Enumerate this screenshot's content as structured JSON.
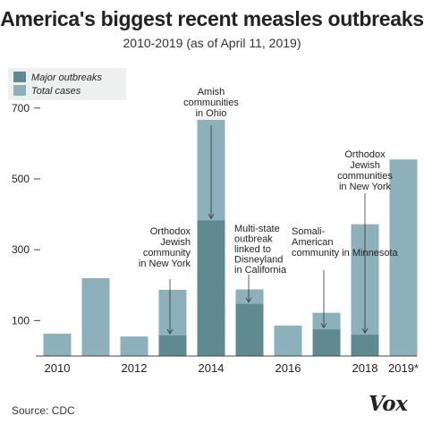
{
  "title": "America's biggest recent measles outbreaks",
  "subtitle": "2010-2019 (as of April 11, 2019)",
  "source": "Source: CDC",
  "logo": "Vox",
  "legend": {
    "major_label": "Major outbreaks",
    "total_label": "Total cases"
  },
  "colors": {
    "total": "#8db1ba",
    "major": "#5f8a90",
    "arrow": "#333333",
    "text": "#222222",
    "axis": "#444444"
  },
  "chart_data": {
    "type": "bar",
    "title": "America's biggest recent measles outbreaks",
    "subtitle": "2010-2019 (as of April 11, 2019)",
    "xlabel": "",
    "ylabel": "",
    "ylim": [
      0,
      750
    ],
    "yticks": [
      100,
      300,
      500,
      700
    ],
    "grid": false,
    "legend_position": "top-left",
    "categories": [
      "2010",
      "2011",
      "2012",
      "2013",
      "2014",
      "2015",
      "2016",
      "2017",
      "2018",
      "2019*"
    ],
    "xtick_labels": [
      "2010",
      "",
      "2012",
      "",
      "2014",
      "",
      "2016",
      "",
      "2018",
      "2019*"
    ],
    "series": [
      {
        "name": "Total cases",
        "values": [
          63,
          220,
          55,
          187,
          667,
          188,
          86,
          122,
          372,
          555
        ]
      },
      {
        "name": "Major outbreaks",
        "values": [
          null,
          null,
          null,
          58,
          383,
          147,
          null,
          75,
          60,
          null
        ]
      }
    ],
    "annotations": [
      {
        "category": "2013",
        "lines": [
          "Orthodox",
          "Jewish",
          "community",
          "in New York"
        ]
      },
      {
        "category": "2014",
        "lines": [
          "Amish",
          "communities",
          "in Ohio"
        ]
      },
      {
        "category": "2015",
        "lines": [
          "Multi-state",
          "outbreak",
          "linked to",
          "Disneyland",
          "in California"
        ]
      },
      {
        "category": "2017",
        "lines": [
          "Somali-",
          "American",
          "community in Minnesota"
        ]
      },
      {
        "category": "2018",
        "lines": [
          "Orthodox",
          "Jewish",
          "communities",
          "in New York"
        ]
      }
    ]
  }
}
